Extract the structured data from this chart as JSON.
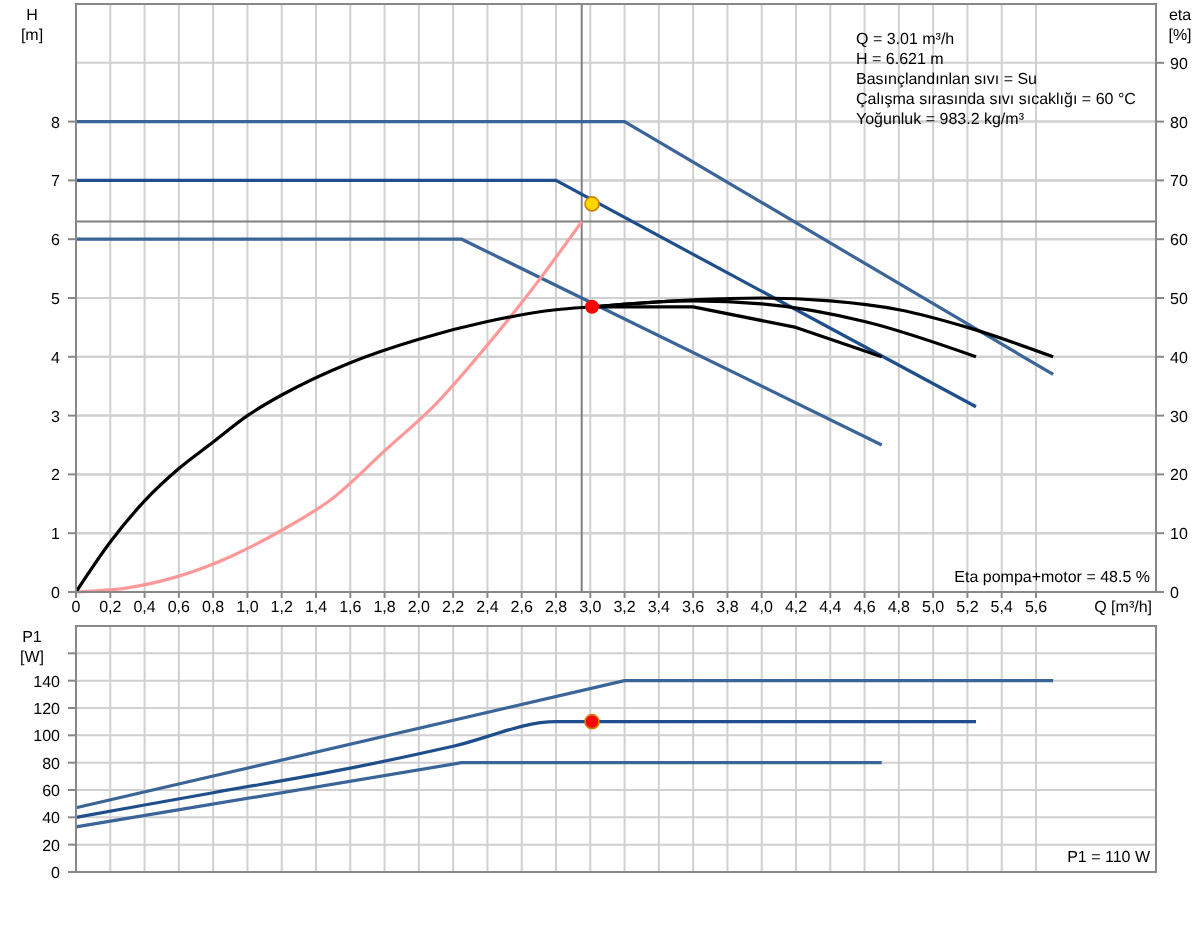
{
  "chart_data": [
    {
      "type": "line",
      "ylabel": "H [m]",
      "y2label": "eta [%]",
      "xlabel": "Q [m³/h]",
      "xlim": [
        0,
        6.3
      ],
      "ylim": [
        0,
        10
      ],
      "y2lim": [
        0,
        100
      ],
      "xticks": [
        0,
        {
          "value": 0.2,
          "label": "0,2"
        },
        {
          "value": 0.4,
          "label": "0,4"
        },
        {
          "value": 0.6,
          "label": "0,6"
        },
        {
          "value": 0.8,
          "label": "0,8"
        },
        {
          "value": 1.0,
          "label": "1,0"
        },
        {
          "value": 1.2,
          "label": "1,2"
        },
        {
          "value": 1.4,
          "label": "1,4"
        },
        {
          "value": 1.6,
          "label": "1,6"
        },
        {
          "value": 1.8,
          "label": "1,8"
        },
        {
          "value": 2.0,
          "label": "2,0"
        },
        {
          "value": 2.2,
          "label": "2,2"
        },
        {
          "value": 2.4,
          "label": "2,4"
        },
        {
          "value": 2.6,
          "label": "2,6"
        },
        {
          "value": 2.8,
          "label": "2,8"
        },
        {
          "value": 3.0,
          "label": "3,0"
        },
        {
          "value": 3.2,
          "label": "3,2"
        },
        {
          "value": 3.4,
          "label": "3,4"
        },
        {
          "value": 3.6,
          "label": "3,6"
        },
        {
          "value": 3.8,
          "label": "3,8"
        },
        {
          "value": 4.0,
          "label": "4,0"
        },
        {
          "value": 4.2,
          "label": "4,2"
        },
        {
          "value": 4.4,
          "label": "4,4"
        },
        {
          "value": 4.6,
          "label": "4,6"
        },
        {
          "value": 4.8,
          "label": "4,8"
        },
        {
          "value": 5.0,
          "label": "5,0"
        },
        {
          "value": 5.2,
          "label": "5,2"
        },
        {
          "value": 5.4,
          "label": "5,4"
        },
        {
          "value": 5.6,
          "label": "5,6"
        }
      ],
      "yticks": [
        0,
        1,
        2,
        3,
        4,
        5,
        6,
        7,
        8
      ],
      "y2ticks": [
        0,
        10,
        20,
        30,
        40,
        50,
        60,
        70,
        80,
        90
      ],
      "grid": true,
      "line_style": "solid",
      "series": [
        {
          "color": "#3b6498",
          "x": [
            0,
            3.2,
            5.7
          ],
          "values": [
            8,
            8,
            3.7
          ]
        },
        {
          "color": "#1f4e8c",
          "x": [
            0,
            2.8,
            5.25
          ],
          "values": [
            7,
            7,
            3.15
          ]
        },
        {
          "color": "#3b6498",
          "x": [
            0,
            2.25,
            4.7
          ],
          "values": [
            6,
            6,
            2.5
          ]
        },
        {
          "color": "#ff9999",
          "x": [
            0,
            0.3,
            0.6,
            0.9,
            1.2,
            1.5,
            1.8,
            2.1,
            2.4,
            2.7,
            2.95
          ],
          "values": [
            0,
            0.07,
            0.27,
            0.6,
            1.05,
            1.6,
            2.4,
            3.2,
            4.2,
            5.3,
            6.3
          ]
        },
        {
          "color": "#000000",
          "axis": "y2",
          "x": [
            0,
            0.2,
            0.4,
            0.6,
            0.8,
            1.0,
            1.2,
            1.6,
            2.0,
            2.4,
            2.8,
            3.01,
            3.6,
            4.0,
            4.6,
            5.25
          ],
          "values": [
            0,
            8.5,
            15.5,
            21,
            25.5,
            30,
            33.5,
            39,
            43,
            46,
            48,
            48.5,
            49.5,
            49,
            46,
            40
          ]
        },
        {
          "color": "#000000",
          "axis": "y2",
          "x": [
            3.01,
            3.6,
            4.0,
            4.4,
            4.8,
            5.2,
            5.7
          ],
          "values": [
            48.5,
            49.7,
            50,
            49.5,
            48,
            45,
            40
          ]
        },
        {
          "color": "#000000",
          "axis": "y2",
          "x": [
            3.01,
            3.6,
            4.2,
            4.7
          ],
          "values": [
            48.5,
            48.5,
            45,
            40
          ]
        },
        {
          "type": "scatter",
          "marker": "circle",
          "color": "#ffd700",
          "x": [
            3.01
          ],
          "values": [
            6.6
          ]
        },
        {
          "type": "scatter",
          "marker": "circle",
          "color": "#ff0000",
          "axis": "y2",
          "x": [
            3.01
          ],
          "values": [
            48.5
          ]
        }
      ],
      "ref_lines": [
        {
          "axis": "x",
          "value": 2.95,
          "color": "#808080"
        },
        {
          "axis": "y",
          "value": 6.3,
          "color": "#808080"
        }
      ],
      "annotations": [
        "Q = 3.01 m³/h",
        "H = 6.621 m",
        "Basınçlandınlan sıvı = Su",
        "Çalışma sırasında sıvı sıcaklığı = 60 °C",
        "Yoğunluk = 983.2 kg/m³",
        "Eta pompa+motor = 48.5 %"
      ]
    },
    {
      "type": "line",
      "ylabel": "P1 [W]",
      "xlim": [
        0,
        6.3
      ],
      "ylim": [
        0,
        180
      ],
      "tick_labels": "y",
      "xticks": [
        0,
        0.2,
        0.4,
        0.6,
        0.8,
        1.0,
        1.2,
        1.4,
        1.6,
        1.8,
        2.0,
        2.2,
        2.4,
        2.6,
        2.8,
        3.0,
        3.2,
        3.4,
        3.6,
        3.8,
        4.0,
        4.2,
        4.4,
        4.6,
        4.8,
        5.0,
        5.2,
        5.4,
        5.6
      ],
      "yticks": [
        0,
        20,
        40,
        60,
        80,
        100,
        120,
        140,
        {
          "value": 160,
          "label": null
        }
      ],
      "grid": true,
      "line_style": "solid",
      "series": [
        {
          "color": "#3b6498",
          "x": [
            0,
            3.2,
            5.7
          ],
          "values": [
            47,
            140,
            140
          ]
        },
        {
          "color": "#1f4e8c",
          "x": [
            0,
            0.8,
            1.6,
            2.2,
            2.8,
            5.25
          ],
          "values": [
            40,
            58,
            76,
            92,
            110,
            110
          ]
        },
        {
          "color": "#3b6498",
          "x": [
            0,
            2.25,
            4.7
          ],
          "values": [
            33,
            80,
            80
          ]
        },
        {
          "type": "scatter",
          "marker": "circle",
          "color": "#ff0000",
          "x": [
            3.01
          ],
          "values": [
            110
          ]
        }
      ],
      "annotations": [
        "P1 = 110 W"
      ]
    }
  ]
}
